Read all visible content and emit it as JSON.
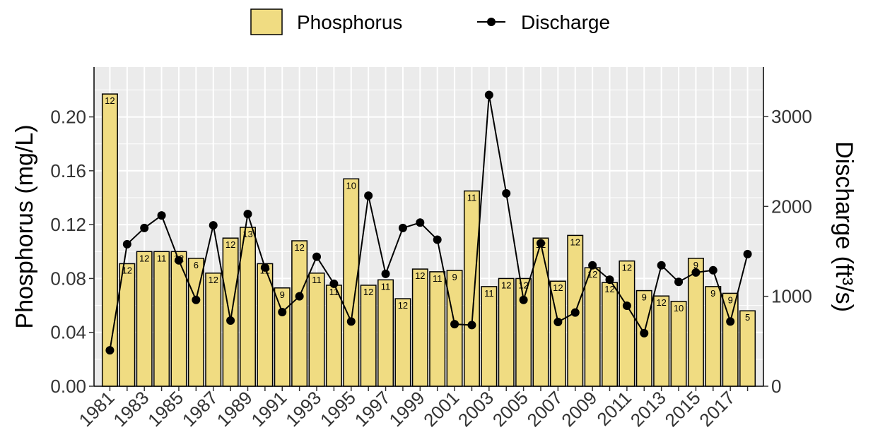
{
  "chart_data": {
    "type": "bar_line",
    "categories": [
      "1981",
      null,
      "1983",
      null,
      "1985",
      null,
      "1987",
      null,
      "1989",
      null,
      "1991",
      null,
      "1993",
      null,
      "1995",
      null,
      "1997",
      null,
      "1999",
      null,
      "2001",
      null,
      "2003",
      null,
      "2005",
      null,
      "2007",
      null,
      "2009",
      null,
      "2011",
      null,
      "2013",
      null,
      "2015",
      null,
      "2017",
      null
    ],
    "series": [
      {
        "name": "Phosphorus",
        "type": "bar",
        "color": "#f0dc82",
        "values": [
          0.217,
          0.091,
          0.1,
          0.1,
          0.1,
          0.095,
          0.084,
          0.11,
          0.118,
          0.091,
          0.073,
          0.108,
          0.084,
          0.075,
          0.154,
          0.075,
          0.079,
          0.065,
          0.087,
          0.085,
          0.086,
          0.145,
          0.074,
          0.08,
          0.08,
          0.11,
          0.078,
          0.112,
          0.088,
          0.077,
          0.093,
          0.071,
          0.067,
          0.063,
          0.095,
          0.074,
          0.069,
          0.056
        ],
        "counts": [
          12,
          12,
          12,
          11,
          12,
          6,
          12,
          12,
          13,
          12,
          9,
          12,
          11,
          11,
          10,
          12,
          11,
          12,
          12,
          11,
          9,
          11,
          11,
          12,
          12,
          12,
          12,
          12,
          12,
          12,
          12,
          9,
          12,
          10,
          9,
          9,
          9,
          5
        ]
      },
      {
        "name": "Discharge",
        "type": "line",
        "axis": "y2",
        "color": "#000000",
        "values": [
          400,
          1580,
          1760,
          1900,
          1400,
          960,
          1790,
          730,
          1915,
          1320,
          825,
          1000,
          1440,
          1140,
          720,
          2120,
          1250,
          1760,
          1820,
          1630,
          690,
          680,
          3240,
          2145,
          960,
          1590,
          715,
          820,
          1345,
          1185,
          895,
          590,
          1345,
          1160,
          1265,
          1290,
          720,
          1470
        ]
      }
    ],
    "ylabel": "Phosphorus (mg/L)",
    "y2label": "Discharge (ft³/s)",
    "ylim": [
      0,
      0.237
    ],
    "yticks": [
      {
        "value": 0,
        "label": "0.00"
      },
      {
        "value": 0.04,
        "label": "0.04"
      },
      {
        "value": 0.08,
        "label": "0.08"
      },
      {
        "value": 0.12,
        "label": "0.12"
      },
      {
        "value": 0.16,
        "label": "0.16"
      },
      {
        "value": 0.2,
        "label": "0.20"
      }
    ],
    "y2lim": [
      0,
      3550
    ],
    "y2ticks": [
      0,
      1000,
      2000,
      3000
    ],
    "grid": true,
    "legend": "top"
  }
}
